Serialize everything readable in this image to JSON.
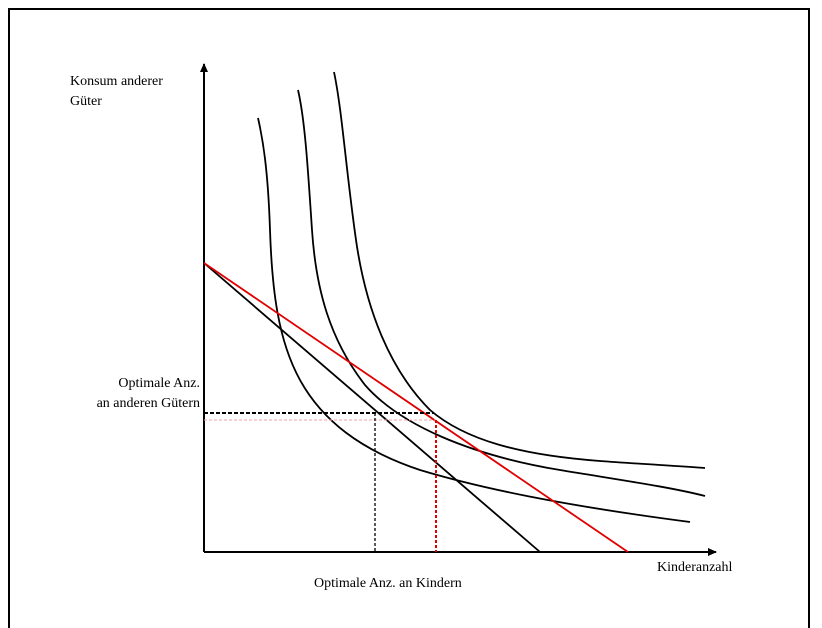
{
  "axes": {
    "y_label_line1": "Konsum anderer",
    "y_label_line2": "Güter",
    "x_label": "Kinderanzahl"
  },
  "annotations": {
    "optimal_goods_line1": "Optimale Anz.",
    "optimal_goods_line2": "an anderen Gütern",
    "optimal_children": "Optimale Anz. an Kindern"
  },
  "colors": {
    "axis": "#000000",
    "indifference_curve": "#000000",
    "budget_line_original": "#000000",
    "budget_line_new": "#e00000",
    "guide_new_light": "#f0a0a0"
  }
}
